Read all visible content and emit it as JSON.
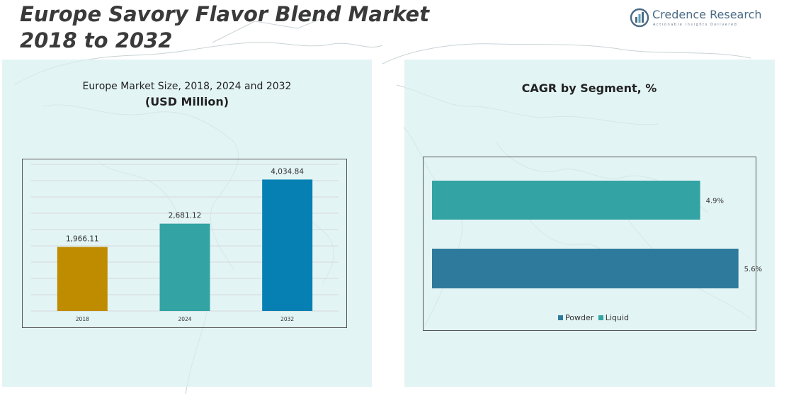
{
  "title": "Europe Savory Flavor Blend Market 2018 to 2032",
  "brand": {
    "name": "Credence Research",
    "tagline": "Actionable Insights Delivered"
  },
  "left_panel": {
    "subtitle": "Europe Market Size, 2018, 2024 and 2032",
    "unit": "(USD Million)"
  },
  "right_panel": {
    "title": "CAGR by Segment, %"
  },
  "chart_data": [
    {
      "type": "bar",
      "title": "Europe Market Size, 2018, 2024 and 2032",
      "subtitle": "(USD Million)",
      "categories": [
        "2018",
        "2024",
        "2032"
      ],
      "values": [
        1966.11,
        2681.12,
        4034.84
      ],
      "value_labels": [
        "1,966.11",
        "2,681.12",
        "4,034.84"
      ],
      "colors": [
        "#bf8c00",
        "#33a3a3",
        "#0680b3"
      ],
      "ylim": [
        0,
        4500
      ],
      "grid": true,
      "xlabel": "",
      "ylabel": ""
    },
    {
      "type": "bar",
      "orientation": "horizontal",
      "title": "CAGR by Segment, %",
      "categories": [
        "Liquid",
        "Powder"
      ],
      "values": [
        4.9,
        5.6
      ],
      "value_labels": [
        "4.9%",
        "5.6%"
      ],
      "colors": [
        "#33a3a3",
        "#2e7a9c"
      ],
      "xlim": [
        0,
        5.85
      ],
      "legend": [
        {
          "name": "Powder",
          "color": "#2e7a9c"
        },
        {
          "name": "Liquid",
          "color": "#33a3a3"
        }
      ],
      "legend_position": "bottom"
    }
  ]
}
